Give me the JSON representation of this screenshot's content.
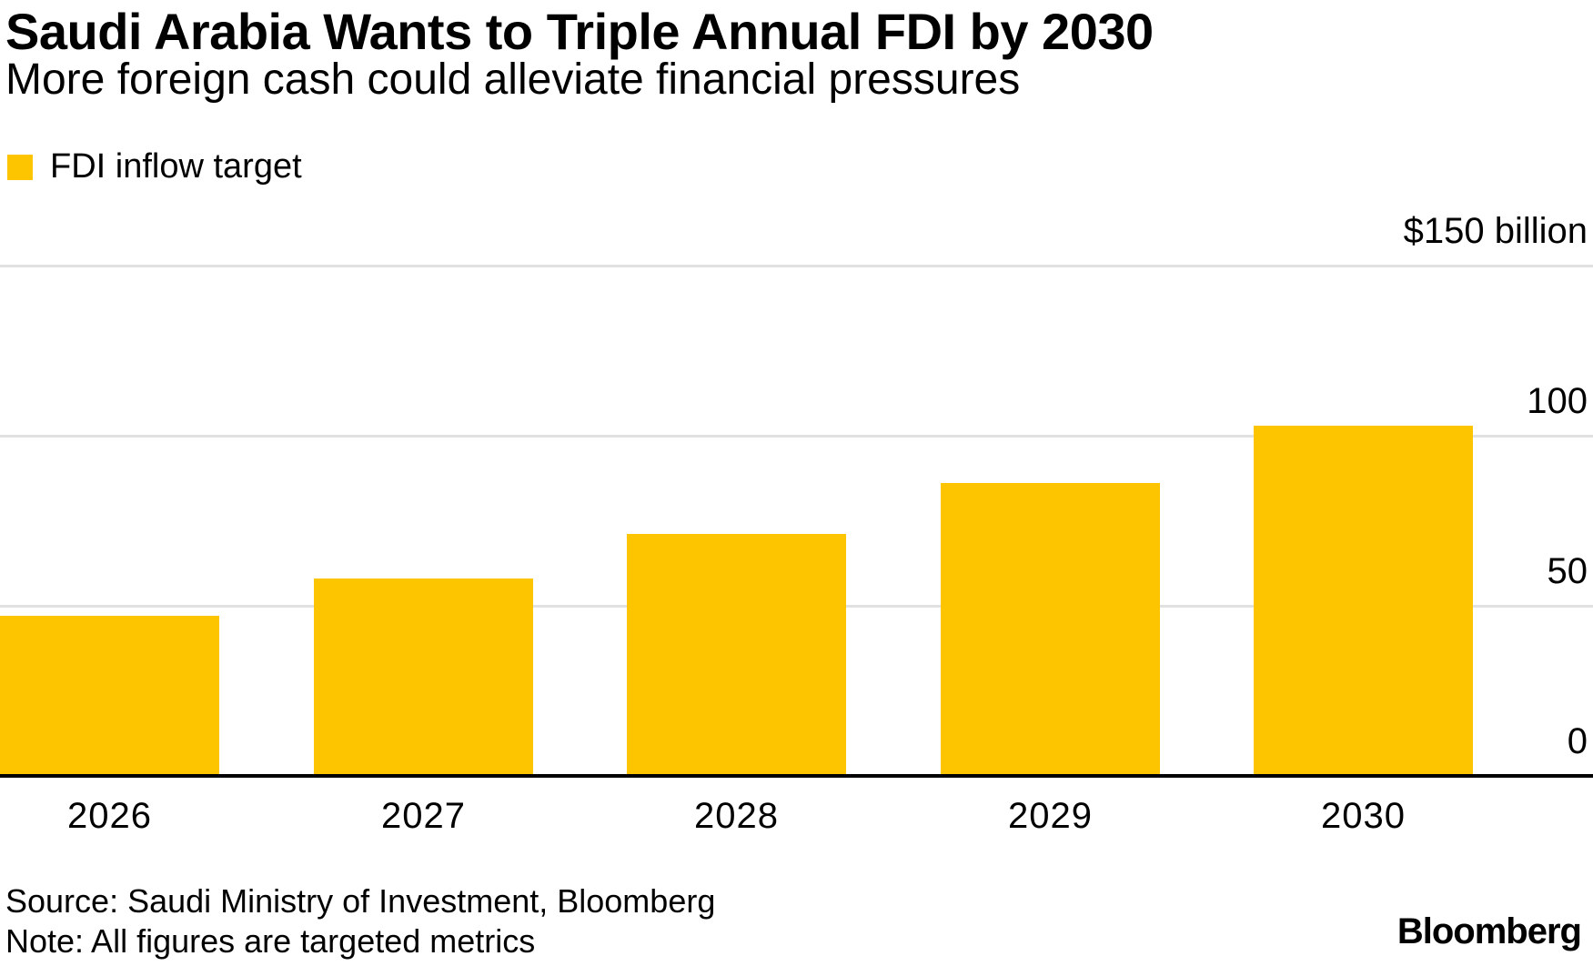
{
  "header": {
    "title": "Saudi Arabia Wants to Triple Annual FDI by 2030",
    "subtitle": "More foreign cash could alleviate financial pressures"
  },
  "legend": {
    "label": "FDI inflow target"
  },
  "chart_data": {
    "type": "bar",
    "title": "Saudi Arabia Wants to Triple Annual FDI by 2030",
    "subtitle": "More foreign cash could alleviate financial pressures",
    "series_name": "FDI inflow target",
    "categories": [
      "2026",
      "2027",
      "2028",
      "2029",
      "2030"
    ],
    "values": [
      47,
      58,
      71,
      86,
      103
    ],
    "unit": "$ billion",
    "ylim": [
      0,
      150
    ],
    "yticks": [
      {
        "value": 150,
        "label": "$150 billion"
      },
      {
        "value": 100,
        "label": "100"
      },
      {
        "value": 50,
        "label": "50"
      },
      {
        "value": 0,
        "label": "0"
      }
    ],
    "grid": true,
    "legend_position": "top-left",
    "colors": {
      "bar": "#FDC500",
      "grid": "#E1E1E1",
      "axis": "#000000",
      "text": "#000000",
      "background": "#FFFFFF"
    }
  },
  "footer": {
    "source": "Source: Saudi Ministry of Investment, Bloomberg",
    "note": "Note: All figures are targeted metrics",
    "logo": "Bloomberg"
  }
}
